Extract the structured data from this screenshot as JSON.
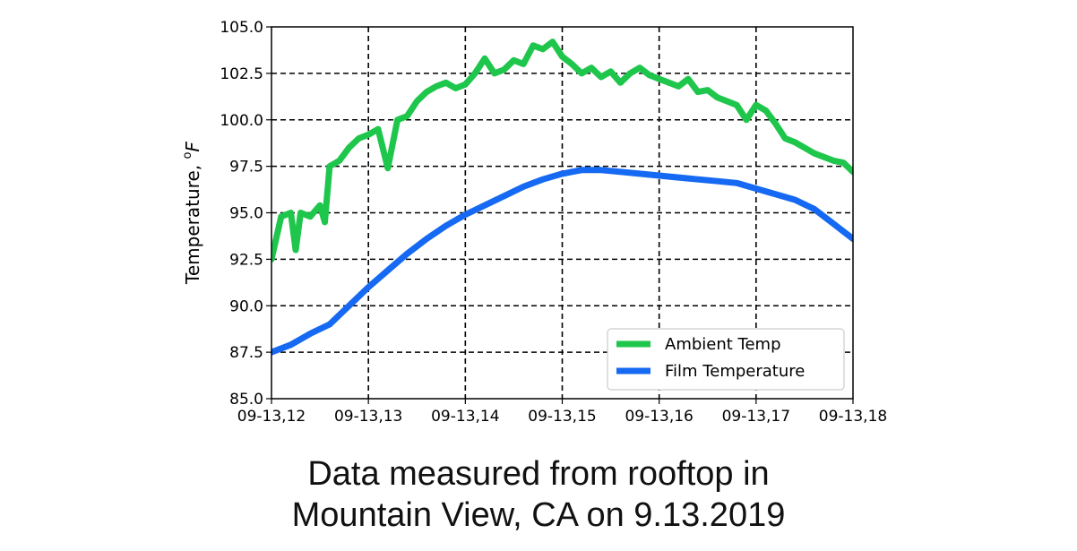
{
  "caption": {
    "line1": "Data measured from rooftop in",
    "line2": "Mountain View, CA on 9.13.2019"
  },
  "chart_data": {
    "type": "line",
    "title": "",
    "xlabel": "",
    "ylabel": "Temperature, ",
    "ylabel_unit_sup": "o",
    "ylabel_unit": "F",
    "x_ticks": [
      "09-13,12",
      "09-13,13",
      "09-13,14",
      "09-13,15",
      "09-13,16",
      "09-13,17",
      "09-13,18"
    ],
    "x_range_hours": [
      12,
      18
    ],
    "y_ticks": [
      "85.0",
      "87.5",
      "90.0",
      "92.5",
      "95.0",
      "97.5",
      "100.0",
      "102.5",
      "105.0"
    ],
    "ylim": [
      85.0,
      105.0
    ],
    "grid": "dashed",
    "legend_position": "lower-right",
    "series": [
      {
        "name": "Ambient Temp",
        "color": "#1ec64b",
        "x": [
          12.0,
          12.1,
          12.2,
          12.25,
          12.3,
          12.4,
          12.5,
          12.55,
          12.6,
          12.7,
          12.8,
          12.9,
          13.0,
          13.1,
          13.2,
          13.3,
          13.4,
          13.5,
          13.6,
          13.7,
          13.8,
          13.9,
          14.0,
          14.1,
          14.2,
          14.3,
          14.4,
          14.5,
          14.6,
          14.7,
          14.8,
          14.9,
          15.0,
          15.1,
          15.2,
          15.3,
          15.4,
          15.5,
          15.6,
          15.7,
          15.8,
          15.9,
          16.0,
          16.1,
          16.2,
          16.3,
          16.4,
          16.5,
          16.6,
          16.7,
          16.8,
          16.9,
          17.0,
          17.1,
          17.2,
          17.3,
          17.4,
          17.5,
          17.6,
          17.7,
          17.8,
          17.9,
          18.0
        ],
        "values": [
          92.5,
          94.8,
          95.0,
          93.0,
          95.0,
          94.8,
          95.4,
          94.5,
          97.5,
          97.8,
          98.5,
          99.0,
          99.2,
          99.5,
          97.4,
          100.0,
          100.2,
          101.0,
          101.5,
          101.8,
          102.0,
          101.7,
          101.9,
          102.5,
          103.3,
          102.5,
          102.7,
          103.2,
          103.0,
          104.0,
          103.8,
          104.2,
          103.4,
          103.0,
          102.5,
          102.8,
          102.3,
          102.6,
          102.0,
          102.5,
          102.8,
          102.4,
          102.2,
          102.0,
          101.8,
          102.2,
          101.5,
          101.6,
          101.2,
          101.0,
          100.8,
          100.0,
          100.8,
          100.5,
          99.8,
          99.0,
          98.8,
          98.5,
          98.2,
          98.0,
          97.8,
          97.7,
          97.2
        ]
      },
      {
        "name": "Film Temperature",
        "color": "#1669f2",
        "x": [
          12.0,
          12.2,
          12.4,
          12.6,
          12.8,
          13.0,
          13.2,
          13.4,
          13.6,
          13.8,
          14.0,
          14.2,
          14.4,
          14.6,
          14.8,
          15.0,
          15.2,
          15.4,
          15.6,
          15.8,
          16.0,
          16.2,
          16.4,
          16.6,
          16.8,
          17.0,
          17.2,
          17.4,
          17.6,
          17.8,
          18.0
        ],
        "values": [
          87.5,
          87.9,
          88.5,
          89.0,
          90.0,
          91.0,
          91.9,
          92.8,
          93.6,
          94.3,
          94.9,
          95.4,
          95.9,
          96.4,
          96.8,
          97.1,
          97.3,
          97.3,
          97.2,
          97.1,
          97.0,
          96.9,
          96.8,
          96.7,
          96.6,
          96.3,
          96.0,
          95.7,
          95.2,
          94.4,
          93.6
        ]
      }
    ]
  }
}
